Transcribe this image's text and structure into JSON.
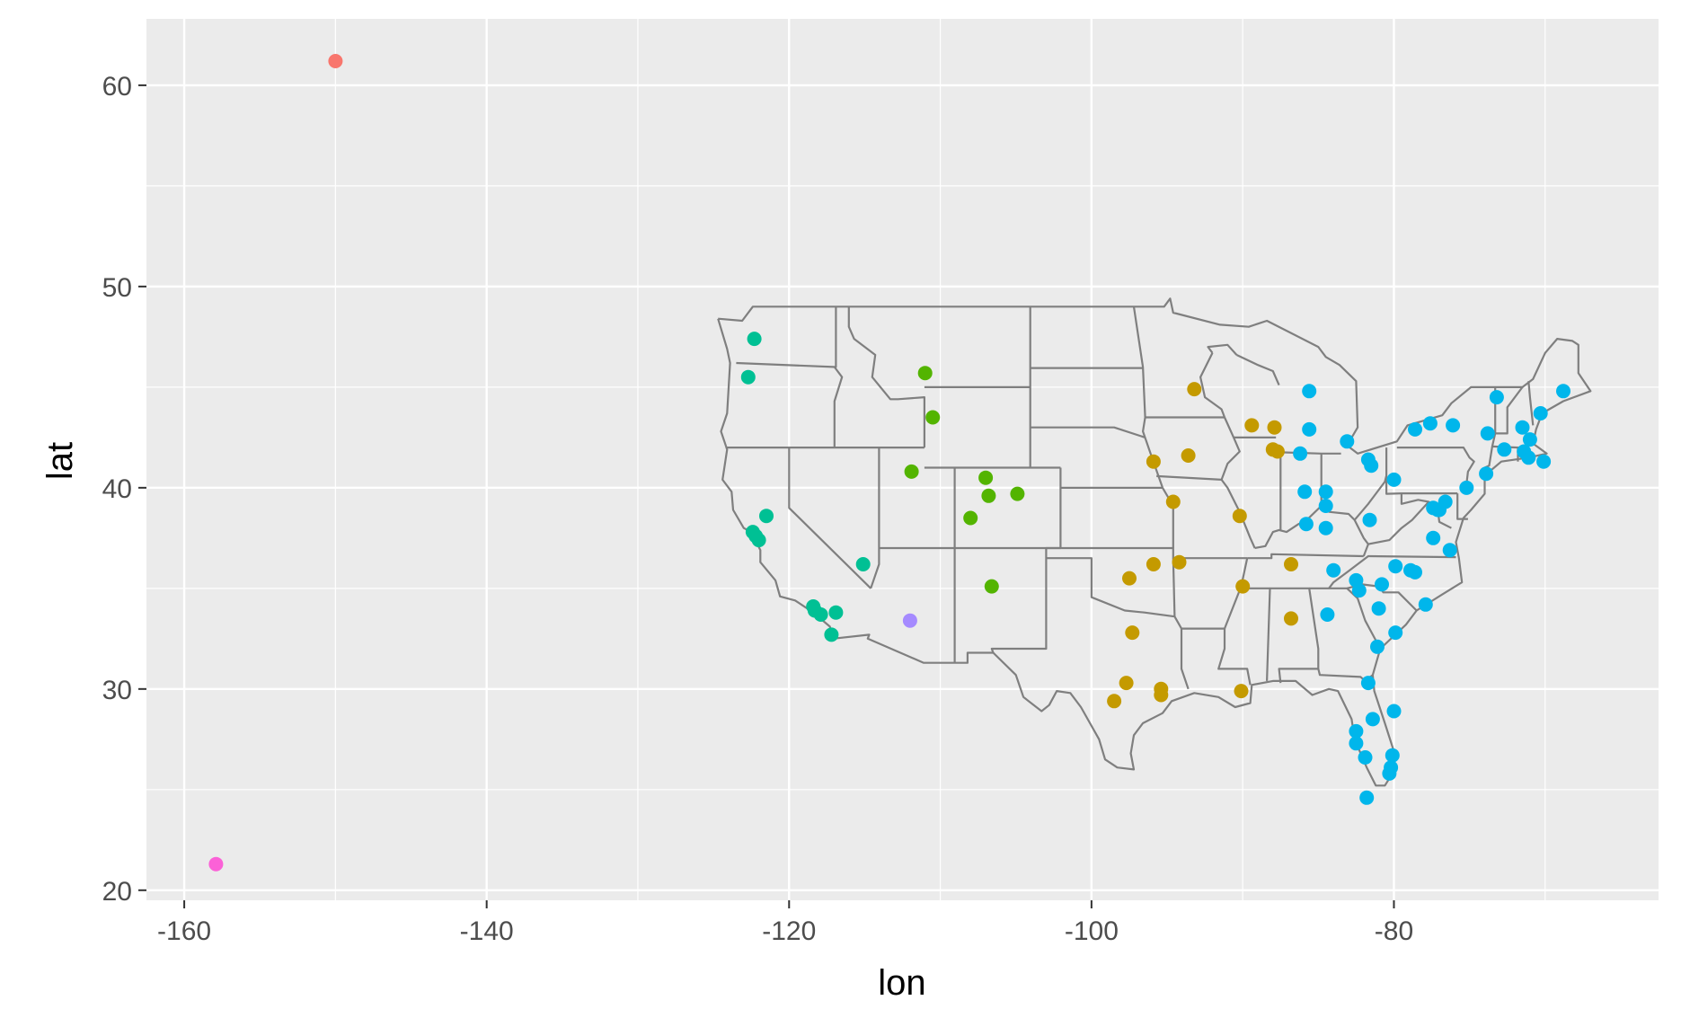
{
  "chart_data": {
    "type": "scatter",
    "xlabel": "lon",
    "ylabel": "lat",
    "xlim": [
      -162.5,
      -62.5
    ],
    "ylim": [
      19.5,
      63.3
    ],
    "x_ticks": [
      -160,
      -140,
      -120,
      -100,
      -80
    ],
    "y_ticks": [
      20,
      30,
      40,
      50,
      60
    ],
    "x_tick_labels": [
      "-160",
      "-140",
      "-120",
      "-100",
      "-80"
    ],
    "y_tick_labels": [
      "20",
      "30",
      "40",
      "50",
      "60"
    ],
    "grid": true,
    "legend": "none",
    "background": "map outline of contiguous US states (grey)",
    "colors": {
      "panel_bg": "#ebebeb",
      "grid": "#ffffff",
      "state_outline": "#7f7f7f",
      "text": "#4d4d4d",
      "label": "#000000"
    },
    "series": [
      {
        "color": "#F8766D",
        "points": [
          [
            -150.0,
            61.2
          ]
        ]
      },
      {
        "color": "#C49A00",
        "points": [
          [
            -93.2,
            44.9
          ],
          [
            -89.4,
            43.1
          ],
          [
            -87.9,
            43.0
          ],
          [
            -95.9,
            41.3
          ],
          [
            -93.6,
            41.6
          ],
          [
            -88.0,
            41.9
          ],
          [
            -87.7,
            41.8
          ],
          [
            -94.6,
            39.3
          ],
          [
            -90.2,
            38.6
          ],
          [
            -97.5,
            35.5
          ],
          [
            -95.9,
            36.2
          ],
          [
            -94.2,
            36.3
          ],
          [
            -86.8,
            36.2
          ],
          [
            -90.0,
            35.1
          ],
          [
            -86.8,
            33.5
          ],
          [
            -97.3,
            32.8
          ],
          [
            -97.7,
            30.3
          ],
          [
            -98.5,
            29.4
          ],
          [
            -95.4,
            30.0
          ],
          [
            -95.4,
            29.7
          ],
          [
            -90.1,
            29.9
          ]
        ]
      },
      {
        "color": "#53B400",
        "points": [
          [
            -111.0,
            45.7
          ],
          [
            -110.5,
            43.5
          ],
          [
            -111.9,
            40.8
          ],
          [
            -107.0,
            40.5
          ],
          [
            -106.8,
            39.6
          ],
          [
            -104.9,
            39.7
          ],
          [
            -108.0,
            38.5
          ],
          [
            -106.6,
            35.1
          ]
        ]
      },
      {
        "color": "#00C094",
        "points": [
          [
            -122.3,
            47.4
          ],
          [
            -122.7,
            45.5
          ],
          [
            -121.5,
            38.6
          ],
          [
            -122.4,
            37.8
          ],
          [
            -122.2,
            37.6
          ],
          [
            -122.0,
            37.4
          ],
          [
            -115.1,
            36.2
          ],
          [
            -118.4,
            34.1
          ],
          [
            -118.3,
            33.9
          ],
          [
            -117.9,
            33.7
          ],
          [
            -116.9,
            33.8
          ],
          [
            -117.2,
            32.7
          ]
        ]
      },
      {
        "color": "#00B6EB",
        "points": [
          [
            -85.6,
            44.8
          ],
          [
            -85.6,
            42.9
          ],
          [
            -83.1,
            42.3
          ],
          [
            -86.2,
            41.7
          ],
          [
            -81.7,
            41.4
          ],
          [
            -81.5,
            41.1
          ],
          [
            -80.0,
            40.4
          ],
          [
            -84.5,
            39.8
          ],
          [
            -85.9,
            39.8
          ],
          [
            -84.5,
            39.1
          ],
          [
            -85.8,
            38.2
          ],
          [
            -84.5,
            38.0
          ],
          [
            -81.6,
            38.4
          ],
          [
            -78.6,
            42.9
          ],
          [
            -77.6,
            43.2
          ],
          [
            -76.1,
            43.1
          ],
          [
            -73.8,
            42.7
          ],
          [
            -73.2,
            44.5
          ],
          [
            -71.5,
            43.0
          ],
          [
            -71.0,
            42.4
          ],
          [
            -71.4,
            41.8
          ],
          [
            -71.1,
            41.5
          ],
          [
            -70.3,
            43.7
          ],
          [
            -68.8,
            44.8
          ],
          [
            -72.7,
            41.9
          ],
          [
            -70.1,
            41.3
          ],
          [
            -73.9,
            40.7
          ],
          [
            -75.2,
            40.0
          ],
          [
            -76.6,
            39.3
          ],
          [
            -77.0,
            38.9
          ],
          [
            -77.4,
            39.0
          ],
          [
            -77.1,
            38.9
          ],
          [
            -77.4,
            37.5
          ],
          [
            -76.3,
            36.9
          ],
          [
            -78.6,
            35.8
          ],
          [
            -79.9,
            36.1
          ],
          [
            -80.8,
            35.2
          ],
          [
            -82.5,
            35.4
          ],
          [
            -82.3,
            34.9
          ],
          [
            -81.0,
            34.0
          ],
          [
            -79.9,
            32.8
          ],
          [
            -77.9,
            34.2
          ],
          [
            -78.9,
            35.9
          ],
          [
            -84.4,
            33.7
          ],
          [
            -81.1,
            32.1
          ],
          [
            -81.7,
            30.3
          ],
          [
            -81.4,
            28.5
          ],
          [
            -82.5,
            27.9
          ],
          [
            -82.5,
            27.3
          ],
          [
            -81.9,
            26.6
          ],
          [
            -80.1,
            26.7
          ],
          [
            -80.2,
            26.1
          ],
          [
            -80.3,
            25.8
          ],
          [
            -81.8,
            24.6
          ],
          [
            -84.0,
            35.9
          ],
          [
            -80.0,
            28.9
          ]
        ]
      },
      {
        "color": "#A58AFF",
        "points": [
          [
            -112.0,
            33.4
          ]
        ]
      },
      {
        "color": "#FB61D7",
        "points": [
          [
            -157.9,
            21.3
          ]
        ]
      }
    ]
  }
}
